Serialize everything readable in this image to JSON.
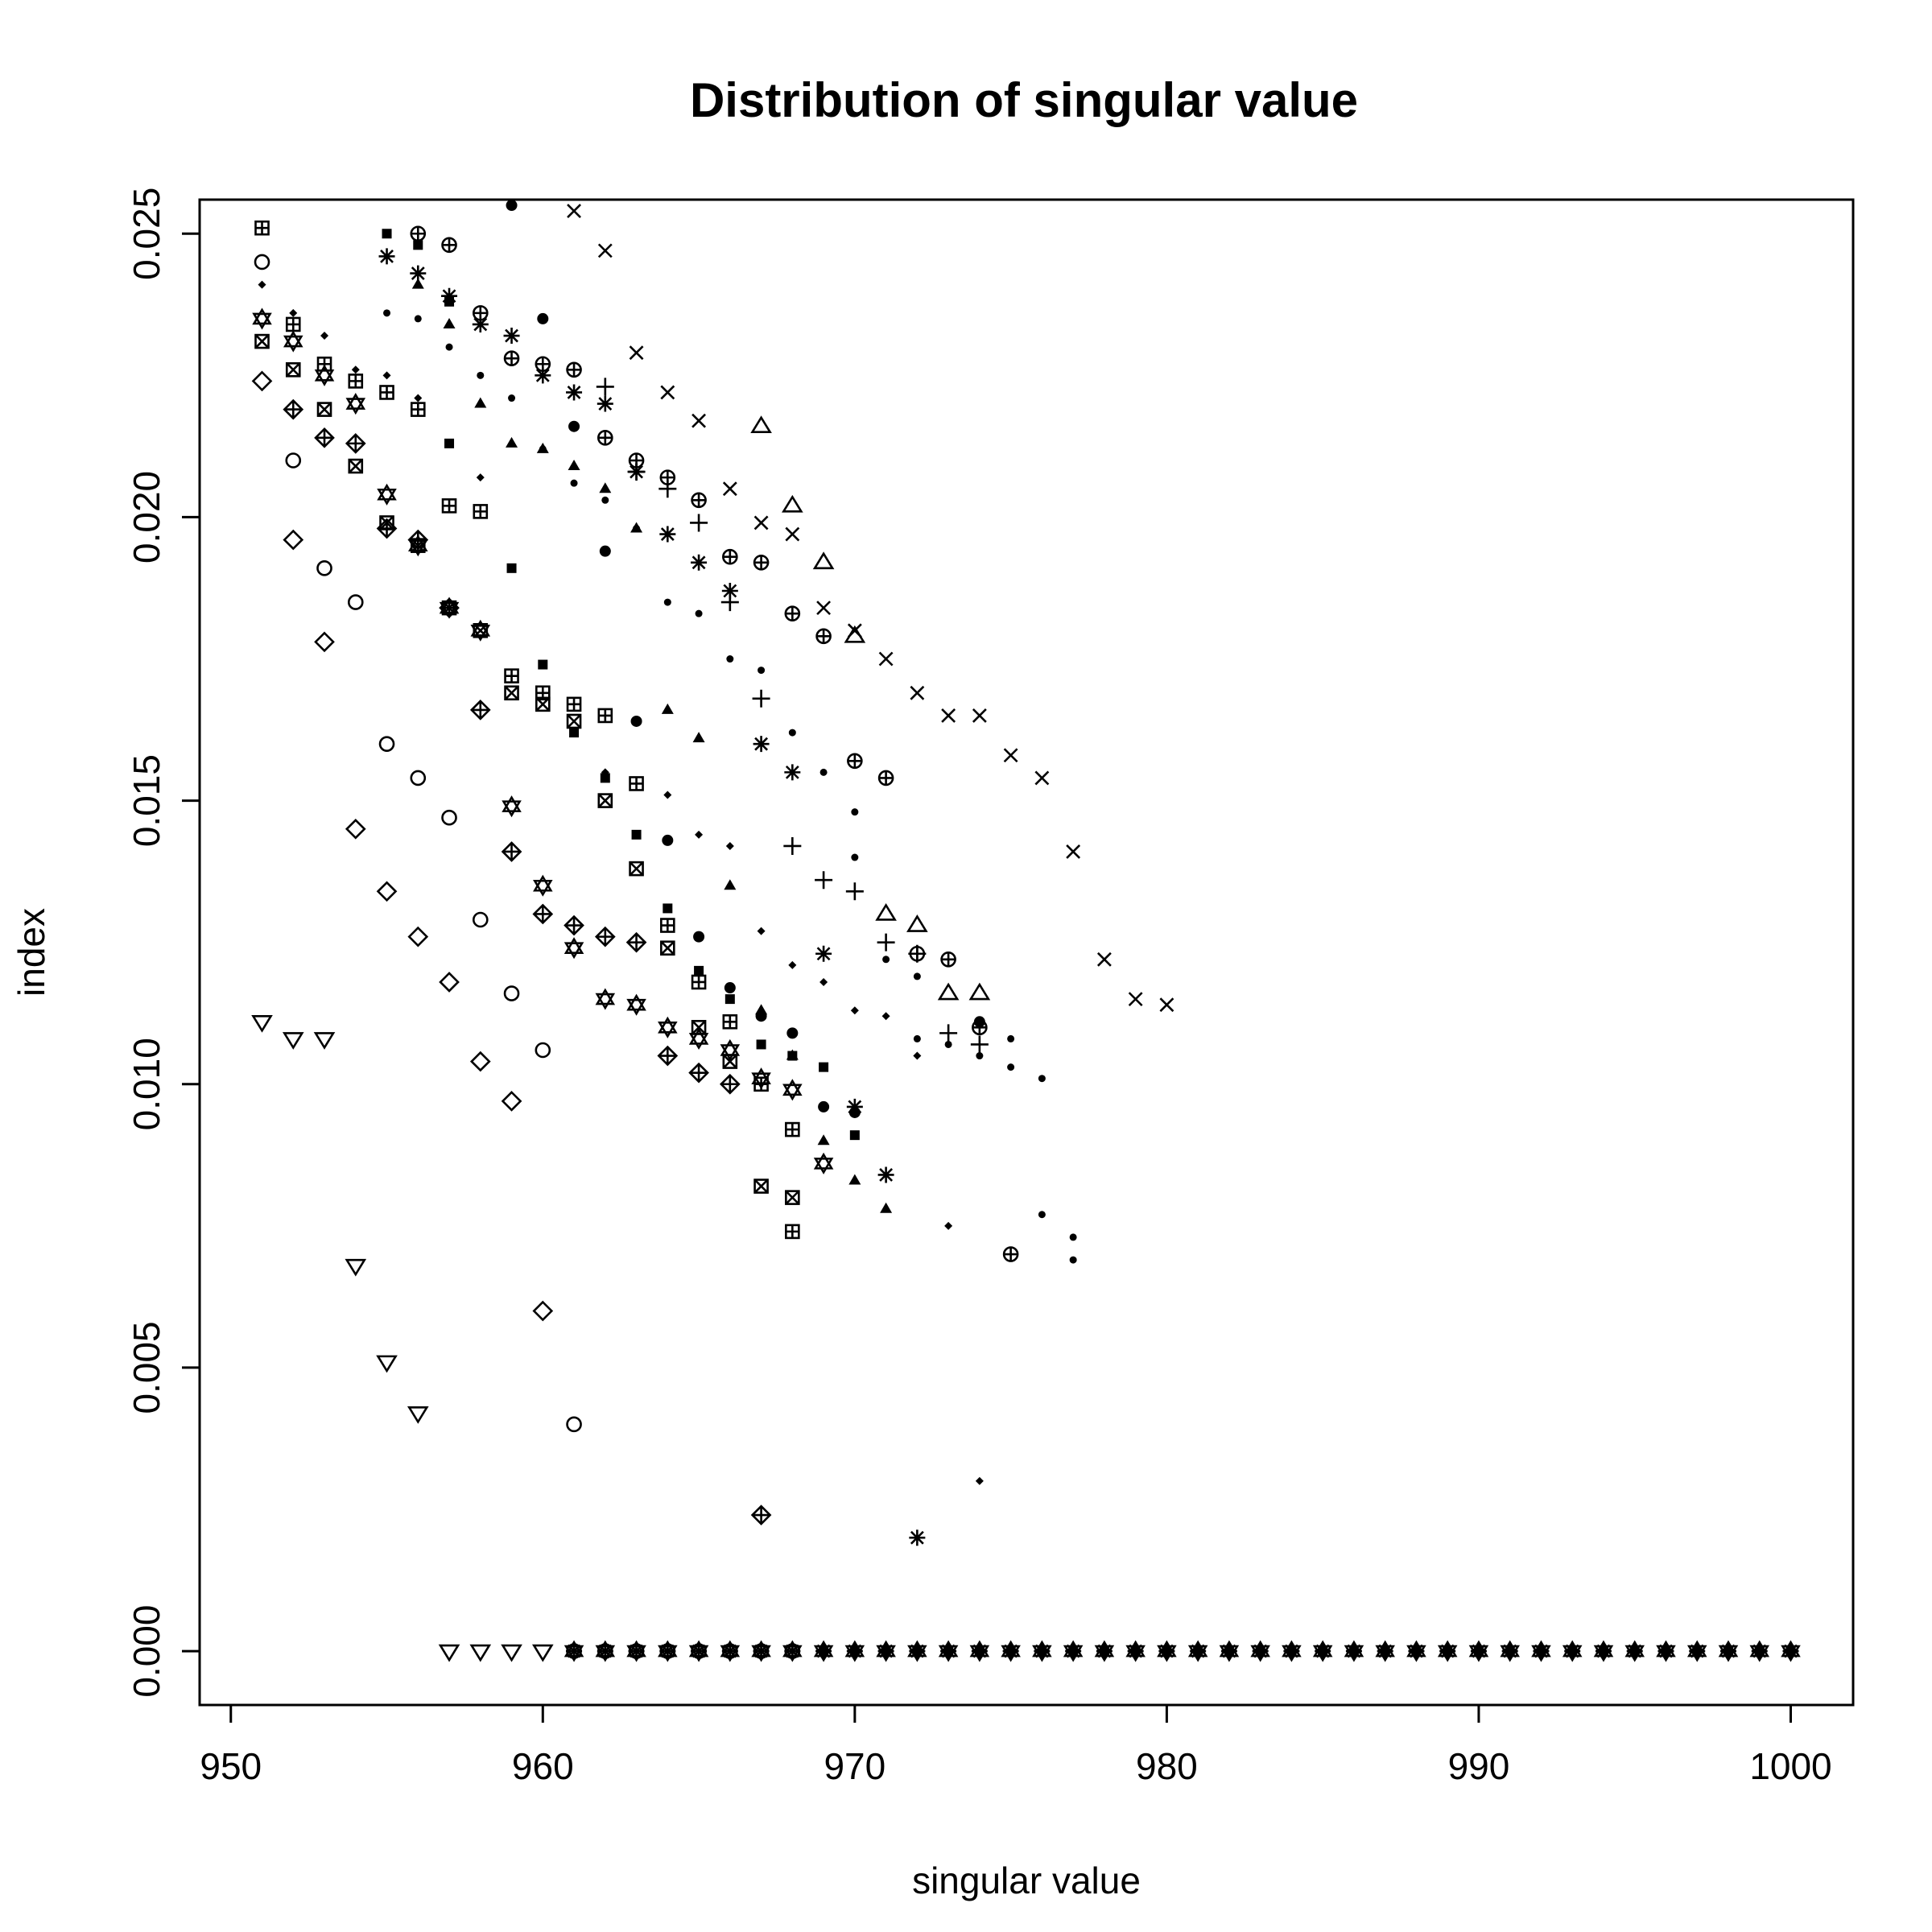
{
  "chart_data": {
    "type": "scatter",
    "title": "Distribution of singular value",
    "xlabel": "singular value",
    "ylabel": "index",
    "xlim": [
      949,
      1002
    ],
    "ylim": [
      -0.00095,
      0.0256
    ],
    "xticks": [
      950,
      960,
      970,
      980,
      990,
      1000
    ],
    "xtick_labels": [
      "950",
      "960",
      "970",
      "980",
      "990",
      "1000"
    ],
    "yticks": [
      0.0,
      0.005,
      0.01,
      0.015,
      0.02,
      0.025
    ],
    "ytick_labels": [
      "0.000",
      "0.005",
      "0.010",
      "0.015",
      "0.020",
      "0.025"
    ],
    "grid": false,
    "legend": "none",
    "marker_color": "#000000",
    "zero_line": {
      "x_from": 957,
      "x_to": 1000,
      "y": 0.0
    },
    "series": [
      {
        "marker": "triangle-down",
        "points": [
          [
            951,
            0.0111
          ],
          [
            952,
            0.0108
          ],
          [
            953,
            0.0108
          ],
          [
            954,
            0.0068
          ],
          [
            955,
            0.0051
          ],
          [
            956,
            0.0042
          ],
          [
            957,
            0.0
          ],
          [
            958,
            0.0
          ],
          [
            959,
            0.0
          ],
          [
            960,
            0.0
          ]
        ]
      },
      {
        "marker": "diamond",
        "points": [
          [
            951,
            0.0224
          ],
          [
            952,
            0.0196
          ],
          [
            953,
            0.0178
          ],
          [
            954,
            0.0145
          ],
          [
            955,
            0.0134
          ],
          [
            956,
            0.0126
          ],
          [
            957,
            0.0118
          ],
          [
            958,
            0.0104
          ],
          [
            959,
            0.0097
          ],
          [
            960,
            0.006
          ]
        ]
      },
      {
        "marker": "circle",
        "points": [
          [
            951,
            0.0245
          ],
          [
            952,
            0.021
          ],
          [
            953,
            0.0191
          ],
          [
            954,
            0.0185
          ],
          [
            955,
            0.016
          ],
          [
            956,
            0.0154
          ],
          [
            957,
            0.0147
          ],
          [
            958,
            0.0129
          ],
          [
            959,
            0.0116
          ],
          [
            960,
            0.0106
          ],
          [
            961,
            0.004
          ]
        ]
      },
      {
        "marker": "square-cross",
        "points": [
          [
            951,
            0.0231
          ],
          [
            952,
            0.0226
          ],
          [
            953,
            0.0219
          ],
          [
            954,
            0.0209
          ],
          [
            955,
            0.0199
          ],
          [
            956,
            0.0195
          ],
          [
            957,
            0.0184
          ],
          [
            958,
            0.018
          ],
          [
            959,
            0.0169
          ],
          [
            960,
            0.0167
          ],
          [
            961,
            0.0164
          ],
          [
            962,
            0.015
          ],
          [
            963,
            0.0138
          ],
          [
            964,
            0.0124
          ],
          [
            965,
            0.011
          ],
          [
            966,
            0.0104
          ],
          [
            967,
            0.0082
          ],
          [
            968,
            0.008
          ]
        ]
      },
      {
        "marker": "square-plus",
        "points": [
          [
            951,
            0.0251
          ],
          [
            952,
            0.0234
          ],
          [
            953,
            0.0227
          ],
          [
            954,
            0.0224
          ],
          [
            955,
            0.0222
          ],
          [
            956,
            0.0219
          ],
          [
            957,
            0.0202
          ],
          [
            958,
            0.0201
          ],
          [
            959,
            0.0172
          ],
          [
            960,
            0.0169
          ],
          [
            961,
            0.0167
          ],
          [
            962,
            0.0165
          ],
          [
            963,
            0.0153
          ],
          [
            964,
            0.0128
          ],
          [
            965,
            0.0118
          ],
          [
            966,
            0.0111
          ],
          [
            967,
            0.01
          ],
          [
            968,
            0.0092
          ],
          [
            968,
            0.0074
          ]
        ]
      },
      {
        "marker": "square",
        "points": [
          [
            955,
            0.025
          ],
          [
            956,
            0.0248
          ],
          [
            957,
            0.0238
          ],
          [
            957,
            0.0213
          ],
          [
            959,
            0.0191
          ],
          [
            960,
            0.0174
          ],
          [
            961,
            0.0162
          ],
          [
            962,
            0.0154
          ],
          [
            963,
            0.0144
          ],
          [
            964,
            0.0131
          ],
          [
            965,
            0.012
          ],
          [
            966,
            0.0115
          ],
          [
            967,
            0.0107
          ],
          [
            968,
            0.0105
          ],
          [
            969,
            0.0103
          ],
          [
            970,
            0.0091
          ]
        ]
      },
      {
        "marker": "diamond-plus",
        "points": [
          [
            952,
            0.0219
          ],
          [
            953,
            0.0214
          ],
          [
            954,
            0.0213
          ],
          [
            955,
            0.0198
          ],
          [
            956,
            0.0196
          ],
          [
            957,
            0.0184
          ],
          [
            958,
            0.0166
          ],
          [
            959,
            0.0141
          ],
          [
            960,
            0.013
          ],
          [
            961,
            0.0128
          ],
          [
            962,
            0.0126
          ],
          [
            963,
            0.0125
          ],
          [
            964,
            0.0105
          ],
          [
            965,
            0.0102
          ],
          [
            966,
            0.01
          ],
          [
            967,
            0.0024
          ]
        ]
      },
      {
        "marker": "star-of-david",
        "points": [
          [
            951,
            0.0235
          ],
          [
            952,
            0.0231
          ],
          [
            953,
            0.0225
          ],
          [
            954,
            0.022
          ],
          [
            955,
            0.0204
          ],
          [
            956,
            0.0195
          ],
          [
            957,
            0.0184
          ],
          [
            958,
            0.018
          ],
          [
            959,
            0.0149
          ],
          [
            960,
            0.0135
          ],
          [
            961,
            0.0124
          ],
          [
            962,
            0.0115
          ],
          [
            963,
            0.0114
          ],
          [
            964,
            0.011
          ],
          [
            965,
            0.0108
          ],
          [
            966,
            0.0106
          ],
          [
            967,
            0.0101
          ],
          [
            968,
            0.0099
          ],
          [
            969,
            0.0086
          ]
        ]
      },
      {
        "marker": "small-diamond",
        "points": [
          [
            951,
            0.0241
          ],
          [
            952,
            0.0236
          ],
          [
            953,
            0.0232
          ],
          [
            954,
            0.0226
          ],
          [
            955,
            0.0225
          ],
          [
            956,
            0.0221
          ],
          [
            958,
            0.0207
          ],
          [
            962,
            0.0155
          ],
          [
            964,
            0.0151
          ],
          [
            965,
            0.0144
          ],
          [
            966,
            0.0142
          ],
          [
            967,
            0.0127
          ],
          [
            968,
            0.0121
          ],
          [
            969,
            0.0118
          ],
          [
            970,
            0.0113
          ],
          [
            971,
            0.0112
          ],
          [
            972,
            0.0105
          ],
          [
            973,
            0.0075
          ],
          [
            974,
            0.003
          ]
        ]
      },
      {
        "marker": "filled-triangle",
        "points": [
          [
            956,
            0.0241
          ],
          [
            957,
            0.0234
          ],
          [
            958,
            0.022
          ],
          [
            959,
            0.0213
          ],
          [
            960,
            0.0212
          ],
          [
            961,
            0.0209
          ],
          [
            962,
            0.0205
          ],
          [
            963,
            0.0198
          ],
          [
            964,
            0.0166
          ],
          [
            965,
            0.0161
          ],
          [
            966,
            0.0135
          ],
          [
            967,
            0.0113
          ],
          [
            968,
            0.0105
          ],
          [
            969,
            0.009
          ],
          [
            970,
            0.0083
          ],
          [
            971,
            0.0078
          ]
        ]
      },
      {
        "marker": "asterisk",
        "points": [
          [
            955,
            0.0246
          ],
          [
            956,
            0.0243
          ],
          [
            957,
            0.0239
          ],
          [
            958,
            0.0234
          ],
          [
            959,
            0.0232
          ],
          [
            960,
            0.0225
          ],
          [
            961,
            0.0222
          ],
          [
            962,
            0.022
          ],
          [
            963,
            0.0208
          ],
          [
            964,
            0.0197
          ],
          [
            965,
            0.0192
          ],
          [
            966,
            0.0187
          ],
          [
            967,
            0.016
          ],
          [
            968,
            0.0155
          ],
          [
            969,
            0.0123
          ],
          [
            970,
            0.0096
          ],
          [
            971,
            0.0084
          ],
          [
            972,
            0.002
          ]
        ]
      },
      {
        "marker": "small-dot",
        "points": [
          [
            955,
            0.0236
          ],
          [
            956,
            0.0235
          ],
          [
            957,
            0.023
          ],
          [
            958,
            0.0225
          ],
          [
            959,
            0.0221
          ],
          [
            960,
            0.0212
          ],
          [
            961,
            0.0206
          ],
          [
            962,
            0.0203
          ],
          [
            963,
            0.0198
          ],
          [
            964,
            0.0185
          ],
          [
            965,
            0.0183
          ],
          [
            966,
            0.0175
          ],
          [
            967,
            0.0173
          ],
          [
            968,
            0.0162
          ],
          [
            969,
            0.0155
          ],
          [
            970,
            0.0148
          ],
          [
            970,
            0.014
          ],
          [
            971,
            0.0122
          ],
          [
            972,
            0.0119
          ],
          [
            972,
            0.0108
          ],
          [
            973,
            0.0107
          ],
          [
            974,
            0.0105
          ],
          [
            975,
            0.0108
          ],
          [
            975,
            0.0103
          ],
          [
            976,
            0.0101
          ],
          [
            976,
            0.0077
          ],
          [
            977,
            0.0073
          ],
          [
            977,
            0.0069
          ]
        ]
      },
      {
        "marker": "filled-circle",
        "points": [
          [
            959,
            0.0255
          ],
          [
            960,
            0.0235
          ],
          [
            961,
            0.0216
          ],
          [
            962,
            0.0194
          ],
          [
            963,
            0.0164
          ],
          [
            964,
            0.0143
          ],
          [
            965,
            0.0126
          ],
          [
            966,
            0.0117
          ],
          [
            967,
            0.0112
          ],
          [
            968,
            0.0109
          ],
          [
            969,
            0.0096
          ],
          [
            970,
            0.0095
          ],
          [
            974,
            0.0111
          ]
        ]
      },
      {
        "marker": "circle-plus",
        "points": [
          [
            956,
            0.025
          ],
          [
            957,
            0.0248
          ],
          [
            958,
            0.0236
          ],
          [
            959,
            0.0228
          ],
          [
            960,
            0.0227
          ],
          [
            961,
            0.0226
          ],
          [
            962,
            0.0214
          ],
          [
            963,
            0.021
          ],
          [
            964,
            0.0207
          ],
          [
            965,
            0.0203
          ],
          [
            966,
            0.0193
          ],
          [
            967,
            0.0192
          ],
          [
            968,
            0.0183
          ],
          [
            969,
            0.0179
          ],
          [
            970,
            0.0157
          ],
          [
            971,
            0.0154
          ],
          [
            972,
            0.0123
          ],
          [
            973,
            0.0122
          ],
          [
            974,
            0.011
          ],
          [
            975,
            0.007
          ]
        ]
      },
      {
        "marker": "cross",
        "points": [
          [
            961,
            0.0254
          ],
          [
            962,
            0.0247
          ],
          [
            963,
            0.0229
          ],
          [
            964,
            0.0222
          ],
          [
            965,
            0.0217
          ],
          [
            966,
            0.0205
          ],
          [
            967,
            0.0199
          ],
          [
            968,
            0.0197
          ],
          [
            969,
            0.0184
          ],
          [
            970,
            0.018
          ],
          [
            971,
            0.0175
          ],
          [
            972,
            0.0169
          ],
          [
            973,
            0.0165
          ],
          [
            974,
            0.0165
          ],
          [
            975,
            0.0158
          ],
          [
            976,
            0.0154
          ],
          [
            977,
            0.0141
          ],
          [
            978,
            0.0122
          ],
          [
            979,
            0.0115
          ],
          [
            980,
            0.0114
          ]
        ]
      },
      {
        "marker": "plus",
        "points": [
          [
            962,
            0.0223
          ],
          [
            963,
            0.0208
          ],
          [
            964,
            0.0205
          ],
          [
            965,
            0.0199
          ],
          [
            966,
            0.0185
          ],
          [
            967,
            0.0168
          ],
          [
            968,
            0.0142
          ],
          [
            969,
            0.0136
          ],
          [
            970,
            0.0134
          ],
          [
            971,
            0.0125
          ],
          [
            972,
            0.0123
          ],
          [
            973,
            0.0109
          ],
          [
            974,
            0.0107
          ]
        ]
      },
      {
        "marker": "triangle-up",
        "points": [
          [
            967,
            0.0216
          ],
          [
            968,
            0.0202
          ],
          [
            969,
            0.0192
          ],
          [
            970,
            0.0179
          ],
          [
            971,
            0.013
          ],
          [
            972,
            0.0128
          ],
          [
            973,
            0.0116
          ],
          [
            974,
            0.0116
          ]
        ]
      }
    ]
  }
}
